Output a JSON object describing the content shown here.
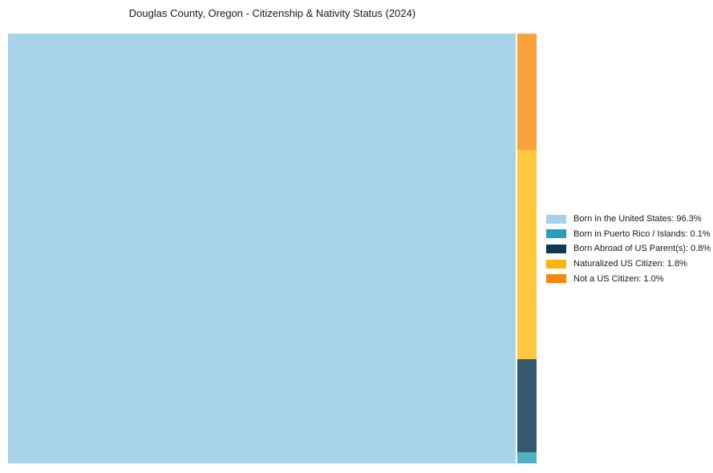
{
  "chart_data": {
    "type": "treemap",
    "title": "Douglas County, Oregon - Citizenship & Nativity Status (2024)",
    "unit": "%",
    "legend_position": "right",
    "background_color": "#ffffff",
    "layout": {
      "main_tile": "Born in the United States",
      "side_column_order_top_to_bottom": [
        "Not a US Citizen",
        "Naturalized US Citizen",
        "Born Abroad of US Parent(s)",
        "Born in Puerto Rico / Islands"
      ]
    },
    "series": [
      {
        "name": "Born in the United States",
        "value": 96.3,
        "legend_label": "Born in the United States: 96.3%",
        "tile_color": "#A8D3EA",
        "legend_color": "#A5D2E8"
      },
      {
        "name": "Born in Puerto Rico / Islands",
        "value": 0.1,
        "legend_label": "Born in Puerto Rico / Islands: 0.1%",
        "tile_color": "#4FB0C6",
        "legend_color": "#2B9EBB"
      },
      {
        "name": "Born Abroad of US Parent(s)",
        "value": 0.8,
        "legend_label": "Born Abroad of US Parent(s): 0.8%",
        "tile_color": "#33596E",
        "legend_color": "#0E3A53"
      },
      {
        "name": "Naturalized US Citizen",
        "value": 1.8,
        "legend_label": "Naturalized US Citizen: 1.8%",
        "tile_color": "#FDC93F",
        "legend_color": "#FDB70A"
      },
      {
        "name": "Not a US Citizen",
        "value": 1.0,
        "legend_label": "Not a US Citizen: 1.0%",
        "tile_color": "#F9A23C",
        "legend_color": "#F8880B"
      }
    ]
  }
}
